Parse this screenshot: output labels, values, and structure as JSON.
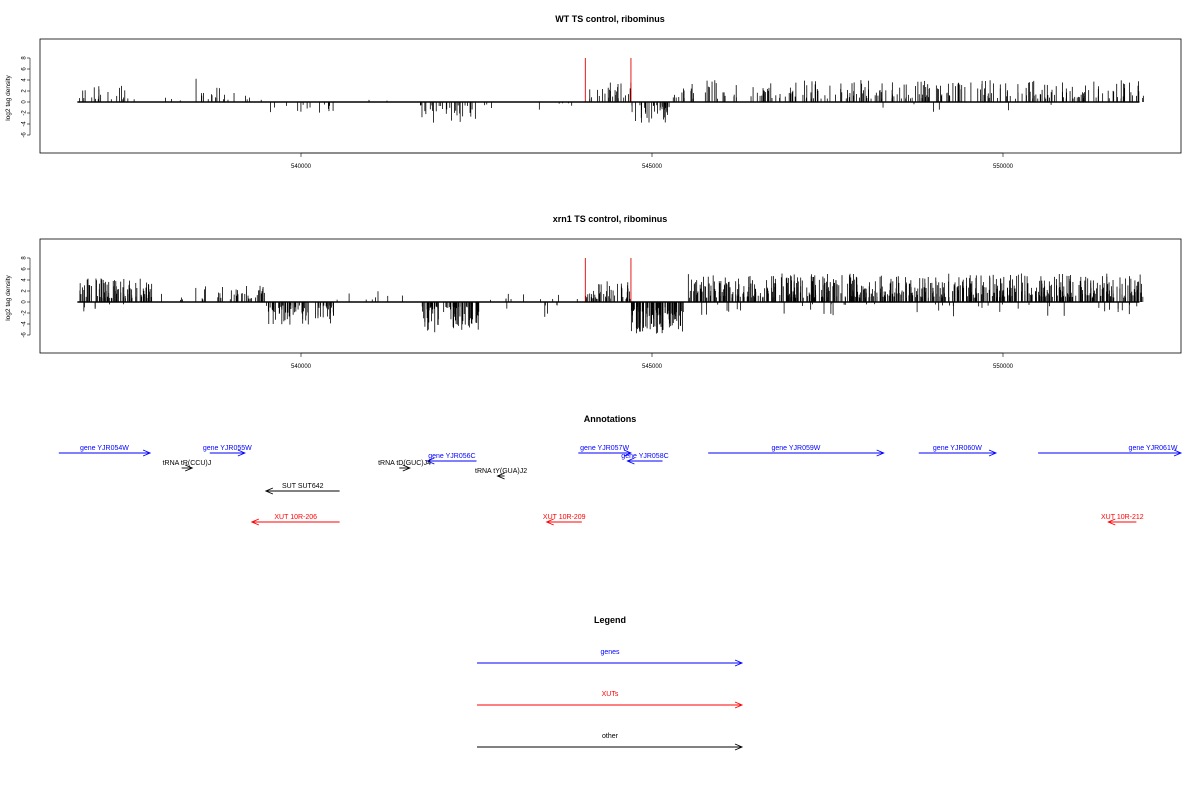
{
  "chart_data": [
    {
      "type": "bar",
      "title": "WT TS control, ribominus",
      "ylabel": "log2 tag density",
      "xlim": [
        536800,
        552200
      ],
      "ylim": [
        -6,
        8
      ],
      "x_ticks": [
        540000,
        545000,
        550000
      ],
      "x_tick_labels": [
        "540000",
        "545000",
        "550000"
      ],
      "y_ticks": [
        -6,
        -4,
        -2,
        0,
        2,
        4,
        6,
        8
      ],
      "y_tick_labels": [
        "-6",
        "-4",
        "-2",
        "0",
        "2",
        "4",
        "6",
        "8"
      ],
      "grid": false,
      "markers": [
        {
          "x": 544050,
          "height": 8,
          "color": "#e00000"
        },
        {
          "x": 544700,
          "height": 8,
          "color": "#e00000"
        }
      ],
      "density_regions": [
        {
          "start": 536820,
          "end": 537650,
          "sign": 1,
          "max": 3.2,
          "count": 22
        },
        {
          "start": 537700,
          "end": 538500,
          "sign": 1,
          "max": 1.5,
          "count": 3
        },
        {
          "start": 538500,
          "end": 538520,
          "sign": 1,
          "max": 7.8,
          "count": 1
        },
        {
          "start": 538550,
          "end": 539450,
          "sign": 1,
          "max": 2.6,
          "count": 18
        },
        {
          "start": 539450,
          "end": 540500,
          "sign": -1,
          "max": 3.0,
          "count": 14
        },
        {
          "start": 540600,
          "end": 541450,
          "sign": 1,
          "max": 1.2,
          "count": 2
        },
        {
          "start": 541650,
          "end": 542500,
          "sign": -1,
          "max": 3.8,
          "count": 30
        },
        {
          "start": 542600,
          "end": 543400,
          "sign": -1,
          "max": 3.0,
          "count": 4
        },
        {
          "start": 543600,
          "end": 543980,
          "sign": -1,
          "max": 1.2,
          "count": 4
        },
        {
          "start": 544100,
          "end": 544700,
          "sign": 1,
          "max": 3.8,
          "count": 25
        },
        {
          "start": 544700,
          "end": 545250,
          "sign": -1,
          "max": 3.8,
          "count": 35
        },
        {
          "start": 545300,
          "end": 552000,
          "sign": 1,
          "max": 4.0,
          "count": 260
        },
        {
          "start": 547600,
          "end": 551900,
          "sign": -1,
          "max": 1.8,
          "count": 6
        }
      ]
    },
    {
      "type": "bar",
      "title": "xrn1 TS control, ribominus",
      "ylabel": "log2 tag density",
      "xlim": [
        536800,
        552200
      ],
      "ylim": [
        -6,
        8
      ],
      "x_ticks": [
        540000,
        545000,
        550000
      ],
      "x_tick_labels": [
        "540000",
        "545000",
        "550000"
      ],
      "y_ticks": [
        -6,
        -4,
        -2,
        0,
        2,
        4,
        6,
        8
      ],
      "y_tick_labels": [
        "-6",
        "-4",
        "-2",
        "0",
        "2",
        "4",
        "6",
        "8"
      ],
      "grid": false,
      "markers": [
        {
          "x": 544050,
          "height": 8,
          "color": "#e00000"
        },
        {
          "x": 544700,
          "height": 8,
          "color": "#e00000"
        }
      ],
      "density_regions": [
        {
          "start": 536820,
          "end": 537900,
          "sign": 1,
          "max": 4.5,
          "count": 90
        },
        {
          "start": 536900,
          "end": 537800,
          "sign": -1,
          "max": 2.0,
          "count": 6
        },
        {
          "start": 538000,
          "end": 538480,
          "sign": 1,
          "max": 1.5,
          "count": 4
        },
        {
          "start": 538500,
          "end": 538520,
          "sign": 1,
          "max": 7.4,
          "count": 1
        },
        {
          "start": 538550,
          "end": 539500,
          "sign": 1,
          "max": 3.0,
          "count": 40
        },
        {
          "start": 539500,
          "end": 540500,
          "sign": -1,
          "max": 4.2,
          "count": 80
        },
        {
          "start": 540500,
          "end": 541500,
          "sign": 1,
          "max": 2.0,
          "count": 8
        },
        {
          "start": 541700,
          "end": 542600,
          "sign": -1,
          "max": 5.5,
          "count": 80
        },
        {
          "start": 542600,
          "end": 544000,
          "sign": 1,
          "max": 2.0,
          "count": 10
        },
        {
          "start": 542800,
          "end": 543900,
          "sign": -1,
          "max": 3.0,
          "count": 6
        },
        {
          "start": 544050,
          "end": 544700,
          "sign": 1,
          "max": 3.8,
          "count": 45
        },
        {
          "start": 544700,
          "end": 545450,
          "sign": -1,
          "max": 5.8,
          "count": 110
        },
        {
          "start": 545500,
          "end": 552000,
          "sign": 1,
          "max": 5.2,
          "count": 600
        },
        {
          "start": 545500,
          "end": 552000,
          "sign": -1,
          "max": 2.6,
          "count": 45
        }
      ]
    }
  ],
  "annotations": {
    "title": "Annotations",
    "features": [
      {
        "label": "gene YJR054W",
        "start": 536550,
        "end": 537850,
        "strand": "+",
        "row": 0,
        "color": "#0000ff"
      },
      {
        "label": "gene YJR055W",
        "start": 538700,
        "end": 539200,
        "strand": "+",
        "row": 0,
        "color": "#0000ff"
      },
      {
        "label": "gene YJR056C",
        "start": 541800,
        "end": 542500,
        "strand": "-",
        "row": 0.8,
        "color": "#0000ff"
      },
      {
        "label": "gene YJR057W",
        "start": 543950,
        "end": 544700,
        "strand": "+",
        "row": 0,
        "color": "#0000ff"
      },
      {
        "label": "gene YJR058C",
        "start": 544650,
        "end": 545150,
        "strand": "-",
        "row": 0.8,
        "color": "#0000ff"
      },
      {
        "label": "gene YJR059W",
        "start": 545800,
        "end": 548300,
        "strand": "+",
        "row": 0,
        "color": "#0000ff"
      },
      {
        "label": "gene YJR060W",
        "start": 548800,
        "end": 549900,
        "strand": "+",
        "row": 0,
        "color": "#0000ff"
      },
      {
        "label": "gene YJR061W",
        "start": 550500,
        "end": 552900,
        "strand": "+",
        "row": 0,
        "color": "#0000ff"
      },
      {
        "label": "tRNA tR(CCU)J",
        "start": 538300,
        "end": 538450,
        "strand": "+",
        "row": 1.5,
        "color": "#000000"
      },
      {
        "label": "tRNA tD(GUC)J4",
        "start": 541400,
        "end": 541550,
        "strand": "+",
        "row": 1.5,
        "color": "#000000"
      },
      {
        "label": "tRNA tY(GUA)J2",
        "start": 542800,
        "end": 542900,
        "strand": "-",
        "row": 2.3,
        "color": "#000000"
      },
      {
        "label": "SUT SUT642",
        "start": 539500,
        "end": 540550,
        "strand": "-",
        "row": 3.8,
        "color": "#000000"
      },
      {
        "label": "XUT 10R-206",
        "start": 539300,
        "end": 540550,
        "strand": "-",
        "row": 6.9,
        "color": "#ff0000"
      },
      {
        "label": "XUT 10R-209",
        "start": 543500,
        "end": 544000,
        "strand": "-",
        "row": 6.9,
        "color": "#ff0000"
      },
      {
        "label": "XUT 10R-212",
        "start": 551500,
        "end": 551900,
        "strand": "-",
        "row": 6.9,
        "color": "#ff0000"
      }
    ]
  },
  "legend": {
    "title": "Legend",
    "items": [
      {
        "label": "genes",
        "color": "#0000ff"
      },
      {
        "label": "XUTs",
        "color": "#ff0000"
      },
      {
        "label": "other",
        "color": "#000000"
      }
    ]
  }
}
